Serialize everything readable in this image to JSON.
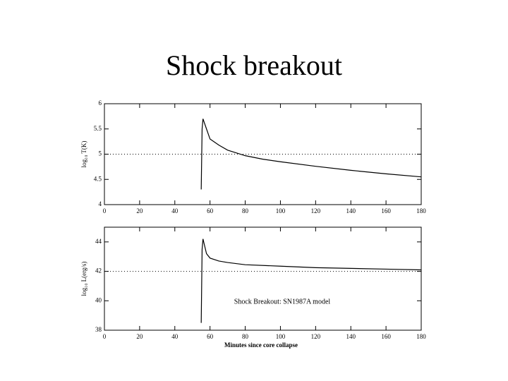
{
  "title": "Shock breakout",
  "chart_data": [
    {
      "type": "line",
      "ylabel": "log₁₀ T(K)",
      "x": [
        55,
        55.5,
        56,
        58,
        60,
        65,
        70,
        80,
        90,
        100,
        120,
        140,
        160,
        180
      ],
      "values": [
        4.3,
        5.5,
        5.7,
        5.5,
        5.3,
        5.18,
        5.08,
        4.97,
        4.9,
        4.85,
        4.76,
        4.68,
        4.61,
        4.55
      ],
      "color": "#000000",
      "xlim": [
        0,
        180
      ],
      "xticks": [
        0,
        20,
        40,
        60,
        80,
        100,
        120,
        140,
        160,
        180
      ],
      "ylim": [
        4,
        6
      ],
      "yticks": [
        4,
        4.5,
        5,
        5.5,
        6
      ],
      "reference_line": 5
    },
    {
      "type": "line",
      "ylabel": "log₁₀ L(erg/s)",
      "xlabel": "Minutes since core collapse",
      "annotation": "Shock Breakout: SN1987A model",
      "x": [
        55,
        55.5,
        56,
        58,
        60,
        65,
        70,
        80,
        100,
        120,
        140,
        160,
        180
      ],
      "values": [
        38.5,
        43.5,
        44.2,
        43.2,
        42.9,
        42.7,
        42.6,
        42.45,
        42.35,
        42.25,
        42.2,
        42.15,
        42.1
      ],
      "color": "#000000",
      "xlim": [
        0,
        180
      ],
      "xticks": [
        0,
        20,
        40,
        60,
        80,
        100,
        120,
        140,
        160,
        180
      ],
      "ylim": [
        38,
        45
      ],
      "yticks": [
        38,
        40,
        42,
        44
      ],
      "reference_line": 42
    }
  ]
}
